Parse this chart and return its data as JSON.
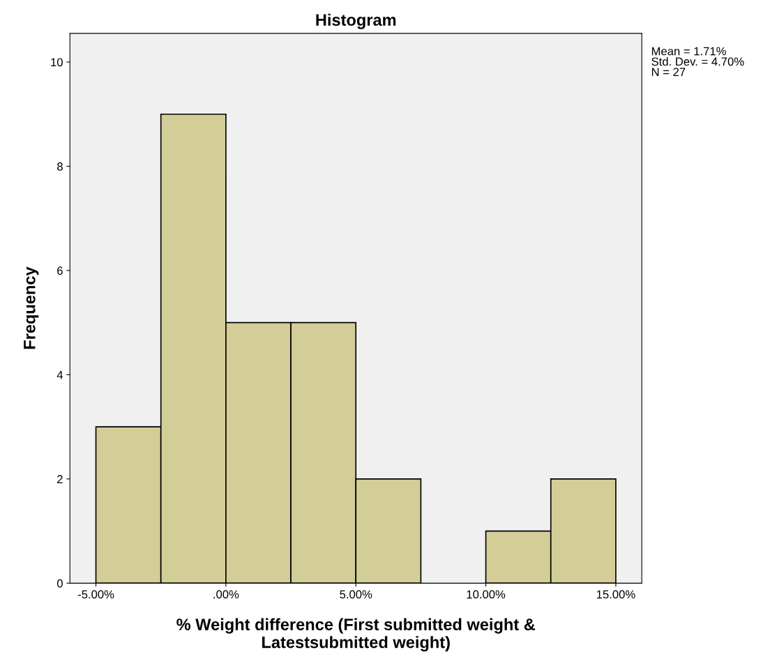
{
  "chart_data": {
    "type": "histogram",
    "title": "Histogram",
    "xlabel": "% Weight difference (First submitted weight &\nLatestsubmitted weight)",
    "ylabel": "Frequency",
    "bins": [
      -5,
      -2.5,
      0,
      2.5,
      5,
      7.5,
      10,
      12.5,
      15
    ],
    "values": [
      3,
      9,
      5,
      5,
      2,
      0,
      1,
      2
    ],
    "color": "#d3ce98",
    "xlim": [
      -6,
      16
    ],
    "ylim": [
      0,
      10.55
    ],
    "xticks": [
      {
        "value": -5,
        "label": "-5.00%"
      },
      {
        "value": 0,
        "label": ".00%"
      },
      {
        "value": 5,
        "label": "5.00%"
      },
      {
        "value": 10,
        "label": "10.00%"
      },
      {
        "value": 15,
        "label": "15.00%"
      }
    ],
    "yticks": [
      0,
      2,
      4,
      6,
      8,
      10
    ],
    "annotations": [
      "Mean = 1.71%\nStd. Dev. = 4.70%\nN = 27"
    ],
    "grid": false,
    "legend": false
  }
}
